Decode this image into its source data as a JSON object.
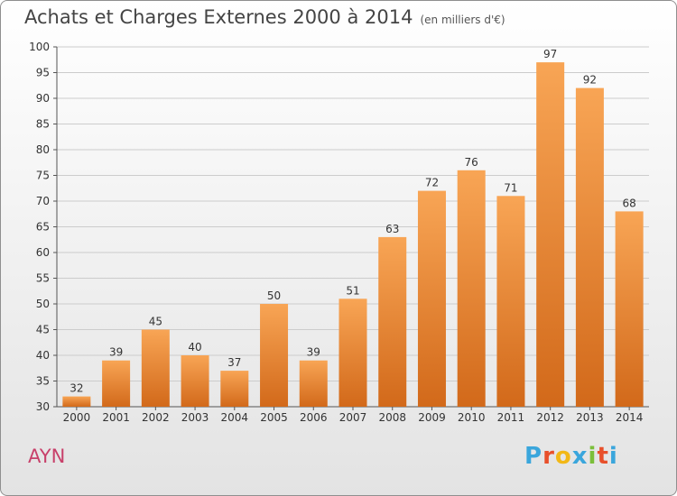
{
  "header": {
    "title": "Achats et Charges Externes 2000 à 2014",
    "subtitle": "(en milliers d'€)"
  },
  "footer": {
    "place": "AYN",
    "brand": "Proxiti"
  },
  "colors": {
    "bar_top": "#f8a555",
    "bar_bottom": "#d2691a",
    "grid": "#cccccc",
    "place": "#c8406a",
    "brand_letters": [
      "#3aa6dc",
      "#e8502b",
      "#f2b817",
      "#3aa6dc",
      "#7bbf3a",
      "#e8502b",
      "#3aa6dc"
    ]
  },
  "chart_data": {
    "type": "bar",
    "categories": [
      "2000",
      "2001",
      "2002",
      "2003",
      "2004",
      "2005",
      "2006",
      "2007",
      "2008",
      "2009",
      "2010",
      "2011",
      "2012",
      "2013",
      "2014"
    ],
    "values": [
      32,
      39,
      45,
      40,
      37,
      50,
      39,
      51,
      63,
      72,
      76,
      71,
      97,
      92,
      68
    ],
    "data_labels": [
      "32",
      "39",
      "45",
      "40",
      "37",
      "50",
      "39",
      "51",
      "63",
      "72",
      "76",
      "71",
      "97",
      "92",
      "68"
    ],
    "title": "Achats et Charges Externes 2000 à 2014",
    "subtitle": "(en milliers d'€)",
    "xlabel": "",
    "ylabel": "",
    "ylim": [
      30,
      100
    ],
    "yticks": [
      30,
      35,
      40,
      45,
      50,
      55,
      60,
      65,
      70,
      75,
      80,
      85,
      90,
      95,
      100
    ],
    "ytick_labels": [
      "30",
      "35",
      "40",
      "45",
      "50",
      "55",
      "60",
      "65",
      "70",
      "75",
      "80",
      "85",
      "90",
      "95",
      "100"
    ],
    "grid": true,
    "legend": "none"
  }
}
